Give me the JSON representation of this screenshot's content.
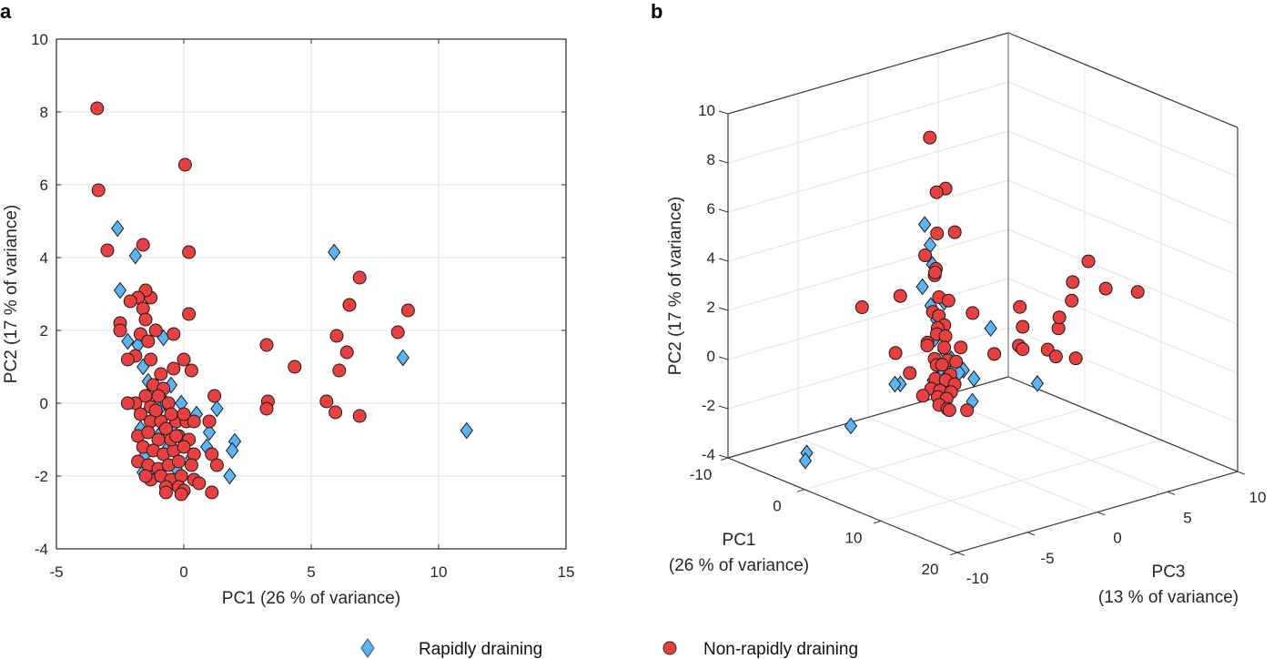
{
  "figure": {
    "legend": {
      "placement": "bottom-center",
      "items": [
        {
          "label": "Rapidly draining",
          "marker": "diamond",
          "color": "#5ab4f5"
        },
        {
          "label": "Non-rapidly draining",
          "marker": "circle",
          "color": "#e84040"
        }
      ]
    }
  },
  "chart_data": [
    {
      "panel": "a",
      "type": "scatter",
      "title": "",
      "xlabel": "PC1 (26 % of variance)",
      "ylabel": "PC2 (17 % of variance)",
      "xlim": [
        -5,
        15
      ],
      "ylim": [
        -4,
        10
      ],
      "xticks": [
        -5,
        0,
        5,
        10,
        15
      ],
      "yticks": [
        -4,
        -2,
        0,
        2,
        4,
        6,
        8,
        10
      ],
      "xtick_labels": [
        "-5",
        "0",
        "5",
        "10",
        "15"
      ],
      "ytick_labels": [
        "-4",
        "-2",
        "0",
        "2",
        "4",
        "6",
        "8",
        "10"
      ],
      "grid": true,
      "series": [
        {
          "name": "Rapidly draining",
          "marker": "diamond",
          "color": "#5ab4f5",
          "points": [
            [
              -2.6,
              4.8
            ],
            [
              -2.5,
              3.1
            ],
            [
              -1.9,
              4.05
            ],
            [
              -2.2,
              1.7
            ],
            [
              -1.8,
              1.6
            ],
            [
              -1.6,
              1.0
            ],
            [
              -0.8,
              1.8
            ],
            [
              -1.3,
              0.3
            ],
            [
              -0.5,
              0.5
            ],
            [
              -0.1,
              0.0
            ],
            [
              -0.9,
              -0.1
            ],
            [
              -1.1,
              -0.3
            ],
            [
              0.5,
              -0.3
            ],
            [
              1.3,
              -0.15
            ],
            [
              1.0,
              -0.8
            ],
            [
              2.0,
              -1.05
            ],
            [
              1.9,
              -1.3
            ],
            [
              1.8,
              -2.0
            ],
            [
              -1.5,
              -1.4
            ],
            [
              -1.6,
              -1.9
            ],
            [
              -1.2,
              -2.0
            ],
            [
              -0.3,
              -1.8
            ],
            [
              -0.6,
              -1.2
            ],
            [
              -1.0,
              -0.9
            ],
            [
              -0.4,
              -0.6
            ],
            [
              0.3,
              -1.5
            ],
            [
              -1.4,
              0.6
            ],
            [
              -0.7,
              0.0
            ],
            [
              0.9,
              -1.2
            ],
            [
              -1.7,
              -0.7
            ],
            [
              5.9,
              4.15
            ],
            [
              8.6,
              1.25
            ],
            [
              11.1,
              -0.75
            ]
          ]
        },
        {
          "name": "Non-rapidly draining",
          "marker": "circle",
          "color": "#e84040",
          "points": [
            [
              -3.4,
              8.1
            ],
            [
              -3.35,
              5.85
            ],
            [
              0.05,
              6.55
            ],
            [
              -3.0,
              4.2
            ],
            [
              -1.6,
              4.35
            ],
            [
              0.2,
              4.15
            ],
            [
              0.2,
              2.45
            ],
            [
              -1.3,
              2.9
            ],
            [
              -1.5,
              3.1
            ],
            [
              -1.8,
              2.9
            ],
            [
              -2.1,
              2.8
            ],
            [
              -1.6,
              2.6
            ],
            [
              -1.5,
              2.3
            ],
            [
              -2.5,
              2.2
            ],
            [
              -2.5,
              2.0
            ],
            [
              -1.1,
              2.0
            ],
            [
              -1.7,
              1.9
            ],
            [
              -0.4,
              1.9
            ],
            [
              -1.4,
              1.7
            ],
            [
              -1.9,
              1.3
            ],
            [
              -2.2,
              1.2
            ],
            [
              -1.3,
              1.2
            ],
            [
              0.0,
              1.2
            ],
            [
              -0.4,
              0.95
            ],
            [
              0.3,
              0.9
            ],
            [
              -0.9,
              0.8
            ],
            [
              -1.2,
              0.5
            ],
            [
              -0.8,
              0.4
            ],
            [
              -1.5,
              0.2
            ],
            [
              -1.9,
              0.0
            ],
            [
              -1.3,
              -0.1
            ],
            [
              -0.6,
              0.0
            ],
            [
              -1.0,
              0.2
            ],
            [
              1.2,
              0.2
            ],
            [
              -1.7,
              -0.3
            ],
            [
              -1.3,
              -0.5
            ],
            [
              -0.9,
              -0.5
            ],
            [
              -0.3,
              -0.5
            ],
            [
              0.1,
              -0.5
            ],
            [
              0.4,
              -0.5
            ],
            [
              1.0,
              -0.5
            ],
            [
              -0.5,
              -0.3
            ],
            [
              -1.8,
              -0.9
            ],
            [
              -1.4,
              -0.8
            ],
            [
              -1.0,
              -1.0
            ],
            [
              -0.7,
              -0.7
            ],
            [
              -0.2,
              -0.9
            ],
            [
              0.2,
              -1.0
            ],
            [
              -1.6,
              -1.2
            ],
            [
              -1.2,
              -1.3
            ],
            [
              -0.8,
              -1.4
            ],
            [
              -0.4,
              -1.3
            ],
            [
              0.0,
              -1.2
            ],
            [
              0.4,
              -1.4
            ],
            [
              -1.8,
              -1.6
            ],
            [
              -1.4,
              -1.7
            ],
            [
              -1.0,
              -1.8
            ],
            [
              -0.6,
              -1.7
            ],
            [
              -0.2,
              -1.6
            ],
            [
              0.3,
              -1.7
            ],
            [
              1.1,
              -1.4
            ],
            [
              1.3,
              -1.7
            ],
            [
              -1.3,
              -2.1
            ],
            [
              -0.9,
              -2.0
            ],
            [
              -0.5,
              -2.1
            ],
            [
              -0.1,
              -2.0
            ],
            [
              0.4,
              -2.1
            ],
            [
              -0.7,
              -2.3
            ],
            [
              -0.2,
              -2.3
            ],
            [
              0.0,
              -2.4
            ],
            [
              -0.7,
              -2.45
            ],
            [
              -0.1,
              -2.5
            ],
            [
              1.1,
              -2.45
            ],
            [
              -2.2,
              0.0
            ],
            [
              -1.1,
              -0.2
            ],
            [
              -0.5,
              -1.0
            ],
            [
              0.0,
              -0.3
            ],
            [
              -1.5,
              -2.0
            ],
            [
              0.6,
              -2.2
            ],
            [
              -0.3,
              -0.9
            ],
            [
              3.25,
              1.6
            ],
            [
              4.35,
              1.0
            ],
            [
              3.3,
              0.05
            ],
            [
              3.25,
              -0.15
            ],
            [
              5.6,
              0.05
            ],
            [
              5.95,
              -0.25
            ],
            [
              6.1,
              0.9
            ],
            [
              6.0,
              1.85
            ],
            [
              6.5,
              2.7
            ],
            [
              6.9,
              3.45
            ],
            [
              6.4,
              1.4
            ],
            [
              6.9,
              -0.35
            ],
            [
              8.4,
              1.95
            ],
            [
              8.8,
              2.55
            ]
          ]
        }
      ]
    },
    {
      "panel": "b",
      "type": "scatter",
      "projection": "3d",
      "title": "",
      "xlabel": "PC1\n(26 % of variance)",
      "ylabel": "PC3\n(13 % of variance)",
      "zlabel": "PC2 (17 % of variance)",
      "pc1_label_lines": [
        "PC1",
        "(26 % of variance)"
      ],
      "pc3_label_lines": [
        "PC3",
        "(13 % of variance)"
      ],
      "pc2_label": "PC2 (17 % of variance)",
      "pc1_lim": [
        -10,
        20
      ],
      "pc2_lim": [
        -4,
        10
      ],
      "pc3_lim": [
        -10,
        10
      ],
      "pc1_ticks": [
        -10,
        0,
        10,
        20
      ],
      "pc2_ticks": [
        -4,
        -2,
        0,
        2,
        4,
        6,
        8,
        10
      ],
      "pc3_ticks": [
        -10,
        -5,
        0,
        5,
        10
      ],
      "pc1_tick_labels": [
        "-10",
        "0",
        "10",
        "20"
      ],
      "pc2_tick_labels": [
        "-4",
        "-2",
        "0",
        "2",
        "4",
        "6",
        "8",
        "10"
      ],
      "pc3_tick_labels": [
        "-10",
        "-5",
        "0",
        "5",
        "10"
      ],
      "grid": true,
      "series": [
        {
          "name": "Rapidly draining",
          "marker": "diamond",
          "color": "#5ab4f5",
          "points_pc1_pc2_pc3": [
            [
              -2.6,
              4.8,
              0
            ],
            [
              -1.9,
              4.05,
              0
            ],
            [
              -2.5,
              3.1,
              0.5
            ],
            [
              -1.8,
              1.6,
              0
            ],
            [
              -1.3,
              0.3,
              0
            ],
            [
              -0.8,
              1.8,
              0.4
            ],
            [
              -0.5,
              0.5,
              0.3
            ],
            [
              -0.1,
              0.0,
              0
            ],
            [
              -1.0,
              -0.9,
              0.3
            ],
            [
              0.3,
              -1.5,
              0.5
            ],
            [
              1.0,
              -0.8,
              0.8
            ],
            [
              2.0,
              -1.05,
              1.0
            ],
            [
              1.8,
              -2.0,
              1.0
            ],
            [
              -1.5,
              -1.4,
              0
            ],
            [
              -1.2,
              -2.0,
              0.2
            ],
            [
              -0.3,
              -1.8,
              0.3
            ],
            [
              0.5,
              -0.3,
              0.2
            ],
            [
              -0.6,
              -1.2,
              -0.2
            ],
            [
              -1.6,
              1.0,
              0.3
            ],
            [
              -0.4,
              -0.6,
              0.5
            ],
            [
              -1.2,
              -1.1,
              -2.5
            ],
            [
              -1.0,
              -1.0,
              -3.0
            ],
            [
              -2.0,
              -2.4,
              -5.6
            ],
            [
              -3.0,
              -3.2,
              -8.2
            ],
            [
              -3.0,
              -3.5,
              -8.3
            ],
            [
              5.9,
              4.15,
              -4.8
            ],
            [
              -3.5,
              -0.4,
              5.2
            ],
            [
              -4.0,
              -3.3,
              8.8
            ],
            [
              0.8,
              -0.9,
              0.6
            ]
          ]
        },
        {
          "name": "Non-rapidly draining",
          "marker": "circle",
          "color": "#e84040",
          "points_pc1_pc2_pc3": [
            [
              -3.4,
              8.1,
              0.8
            ],
            [
              -3.35,
              5.85,
              1.9
            ],
            [
              0.05,
              6.55,
              -0.6
            ],
            [
              -3.0,
              4.2,
              1.1
            ],
            [
              -1.6,
              4.35,
              1.6
            ],
            [
              0.2,
              4.15,
              -1.5
            ],
            [
              -1.3,
              2.9,
              0
            ],
            [
              -1.5,
              3.1,
              0.2
            ],
            [
              -1.8,
              2.9,
              0.3
            ],
            [
              -1.1,
              2.0,
              0.2
            ],
            [
              -0.4,
              1.9,
              0.5
            ],
            [
              -1.9,
              1.3,
              0.2
            ],
            [
              -1.3,
              1.2,
              0.3
            ],
            [
              -0.4,
              0.95,
              0.2
            ],
            [
              -0.9,
              0.8,
              0
            ],
            [
              -1.2,
              0.5,
              0.1
            ],
            [
              -0.8,
              0.4,
              0.5
            ],
            [
              -1.5,
              0.2,
              -0.4
            ],
            [
              -1.9,
              0.0,
              -0.2
            ],
            [
              -0.6,
              0.0,
              0.3
            ],
            [
              1.2,
              0.2,
              0.5
            ],
            [
              -1.3,
              -0.5,
              0
            ],
            [
              -0.3,
              -0.5,
              0.4
            ],
            [
              0.4,
              -0.5,
              0.6
            ],
            [
              -1.4,
              -0.8,
              0.2
            ],
            [
              -0.7,
              -0.7,
              0.2
            ],
            [
              0.2,
              -1.0,
              0.3
            ],
            [
              -1.2,
              -1.3,
              0
            ],
            [
              -0.4,
              -1.3,
              0.3
            ],
            [
              0.4,
              -1.4,
              0.5
            ],
            [
              -1.4,
              -1.7,
              -0.2
            ],
            [
              -0.6,
              -1.7,
              0
            ],
            [
              0.3,
              -1.7,
              0.3
            ],
            [
              -0.9,
              -2.0,
              0
            ],
            [
              -0.1,
              -2.0,
              0.2
            ],
            [
              -0.7,
              -2.3,
              0
            ],
            [
              0.0,
              -2.4,
              0.2
            ],
            [
              -0.1,
              -2.5,
              0.4
            ],
            [
              1.1,
              -2.45,
              1.0
            ],
            [
              -2.2,
              0.0,
              -2.3
            ],
            [
              -1.8,
              -0.9,
              -1.5
            ],
            [
              -1.0,
              -1.8,
              -1.0
            ],
            [
              -2.0,
              2.3,
              -4.8
            ],
            [
              -2.5,
              2.2,
              -1.8
            ],
            [
              0.0,
              1.2,
              2.0
            ],
            [
              1.0,
              -0.5,
              3.0
            ],
            [
              3.25,
              1.6,
              3.6
            ],
            [
              4.35,
              1.0,
              3.2
            ],
            [
              3.3,
              0.05,
              3.5
            ],
            [
              3.25,
              -0.15,
              3.8
            ],
            [
              5.6,
              0.05,
              4.3
            ],
            [
              5.95,
              -0.25,
              4.7
            ],
            [
              6.1,
              0.9,
              4.8
            ],
            [
              6.0,
              1.85,
              5.8
            ],
            [
              6.5,
              2.7,
              5.6
            ],
            [
              6.9,
              3.45,
              6.5
            ],
            [
              6.4,
              1.4,
              4.7
            ],
            [
              6.9,
              -0.35,
              5.6
            ],
            [
              8.4,
              1.95,
              9.2
            ],
            [
              8.8,
              2.55,
              6.7
            ]
          ]
        }
      ]
    }
  ]
}
